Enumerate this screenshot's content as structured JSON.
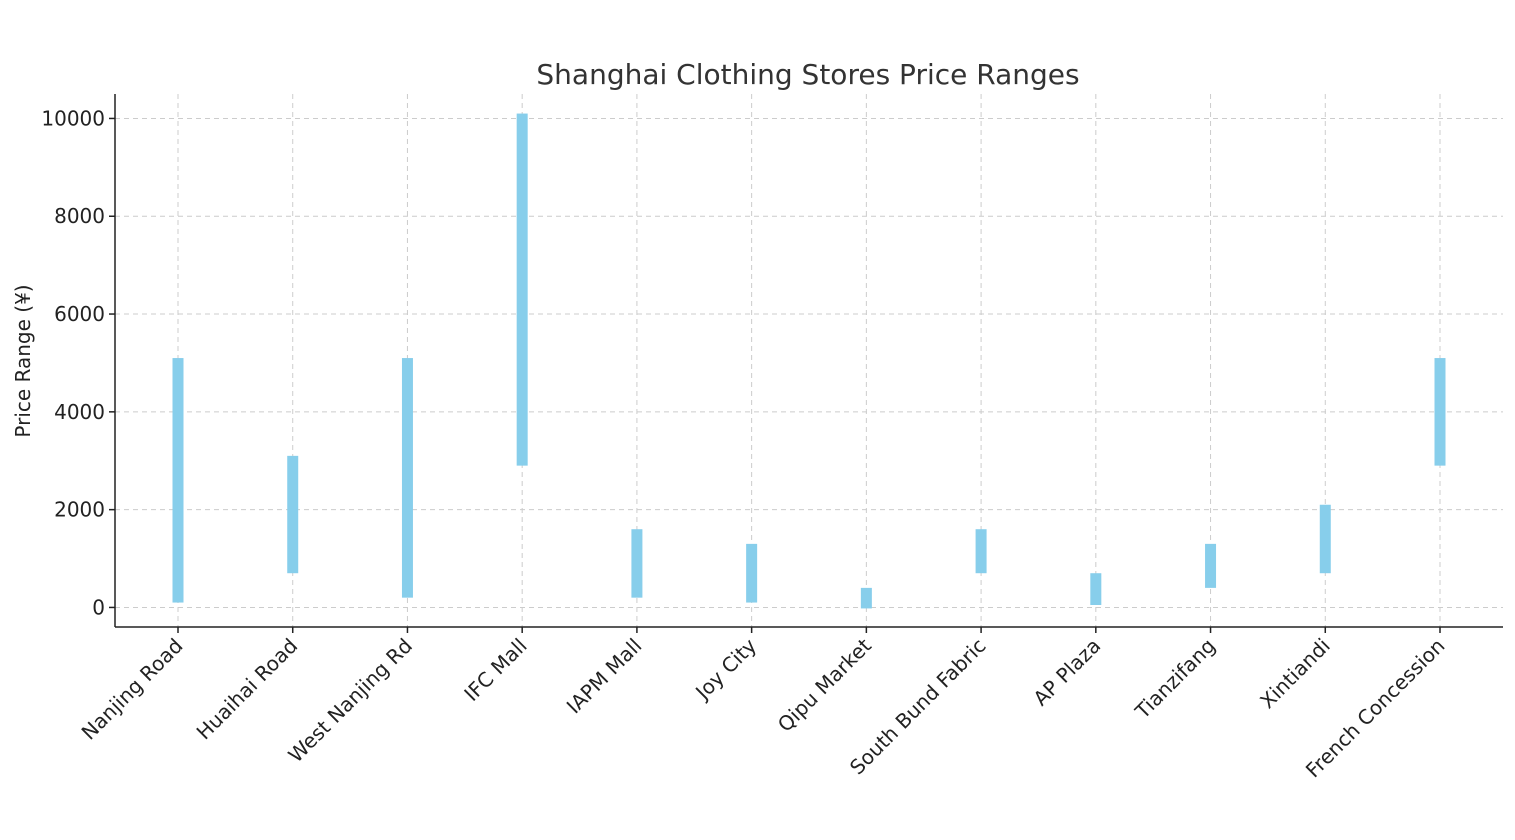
{
  "chart_data": {
    "type": "bar",
    "subtype": "floating-range",
    "title": "Shanghai Clothing Stores Price Ranges",
    "xlabel": "",
    "ylabel": "Price Range (¥)",
    "categories": [
      "Nanjing Road",
      "Huaihai Road",
      "West Nanjing Rd",
      "IFC Mall",
      "IAPM Mall",
      "Joy City",
      "Qipu Market",
      "South Bund Fabric",
      "AP Plaza",
      "Tianzifang",
      "Xintiandi",
      "French Concession"
    ],
    "series": [
      {
        "low": [
          100,
          700,
          200,
          2900,
          200,
          100,
          -20,
          700,
          50,
          400,
          700,
          2900
        ],
        "high": [
          5100,
          3100,
          5100,
          10100,
          1600,
          1300,
          400,
          1600,
          700,
          1300,
          2100,
          5100
        ]
      }
    ],
    "ylim": [
      -400,
      10500
    ],
    "yticks": [
      0,
      2000,
      4000,
      6000,
      8000,
      10000
    ],
    "grid": true,
    "legend": "none",
    "bar_color": "#87CEEB"
  }
}
